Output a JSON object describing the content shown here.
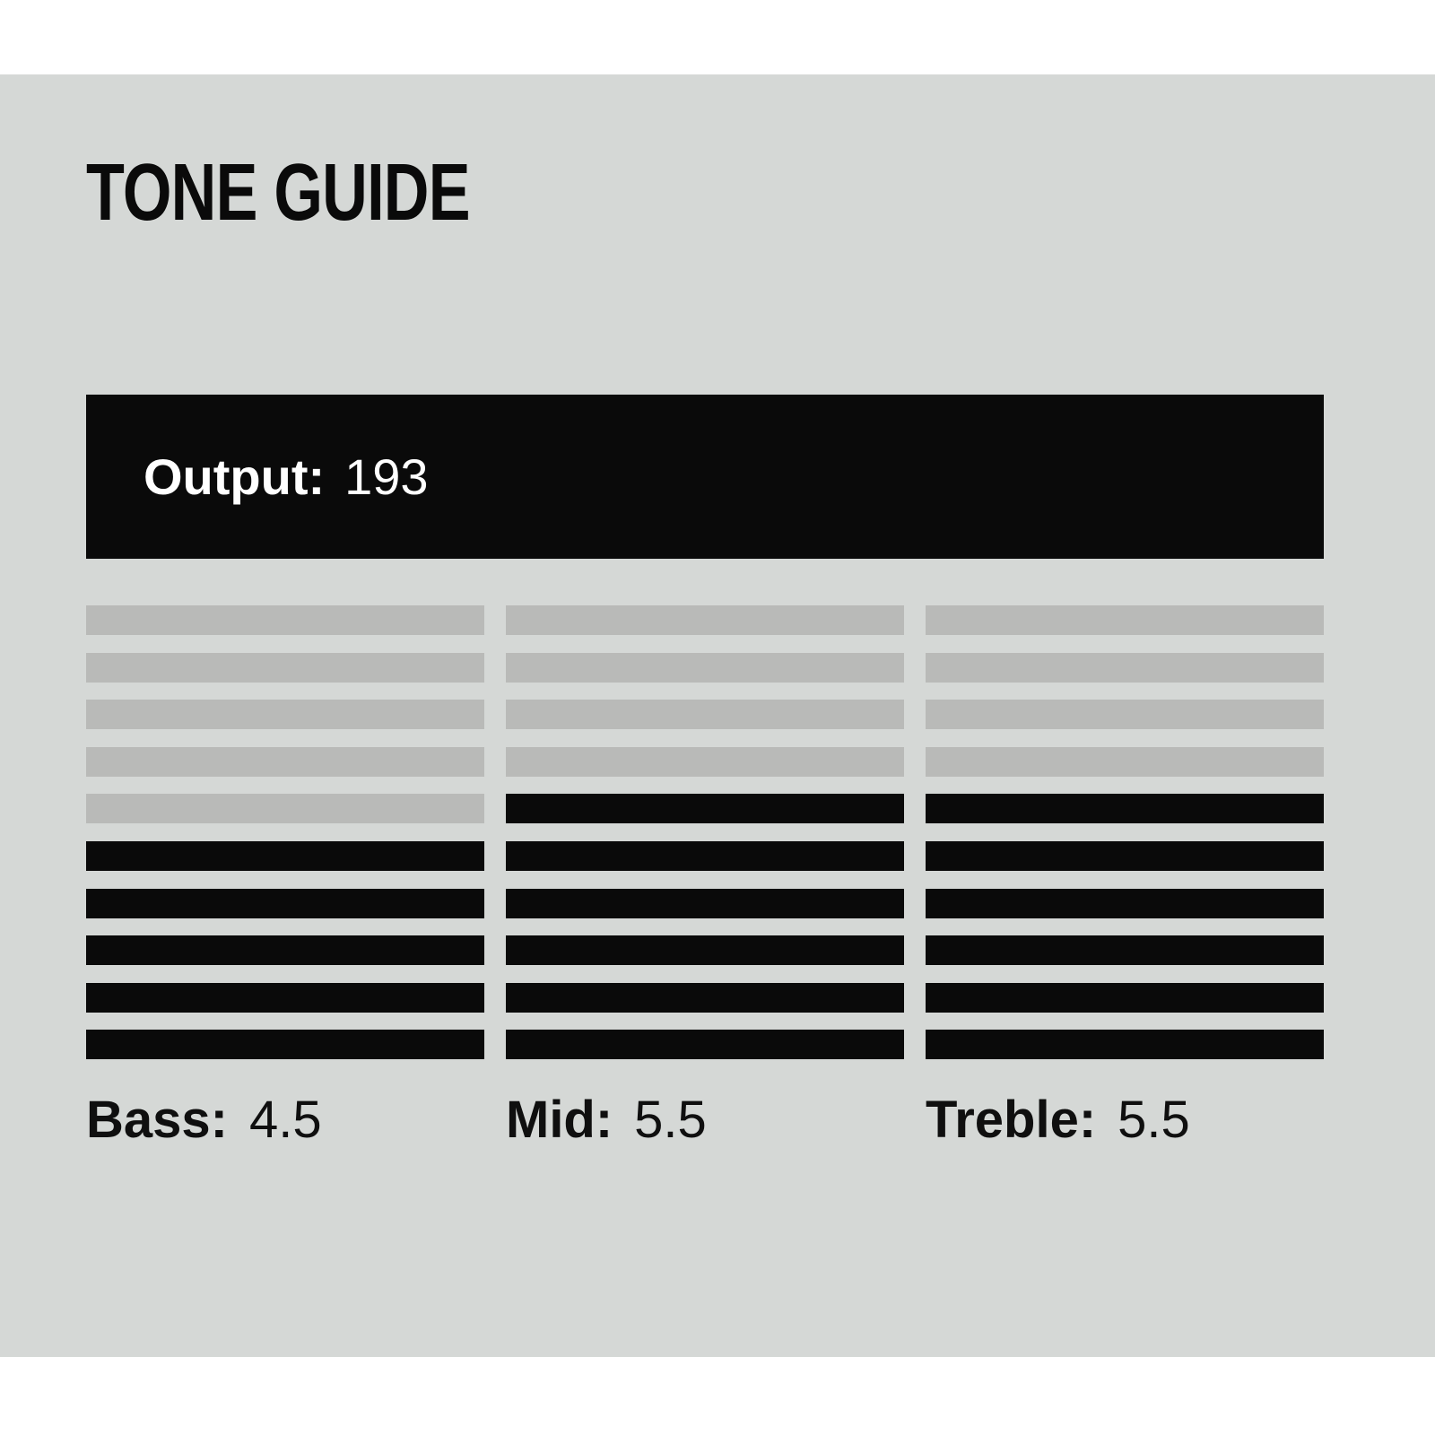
{
  "page": {
    "title": "TONE GUIDE"
  },
  "output": {
    "label": "Output:",
    "value": "193"
  },
  "meters": [
    {
      "id": "bass",
      "label": "Bass:",
      "value": "4.5",
      "segments_total": 10,
      "segments_active": 5
    },
    {
      "id": "mid",
      "label": "Mid:",
      "value": "5.5",
      "segments_total": 10,
      "segments_active": 6
    },
    {
      "id": "treble",
      "label": "Treble:",
      "value": "5.5",
      "segments_total": 10,
      "segments_active": 6
    }
  ],
  "colors": {
    "page_background": "#ffffff",
    "panel_background": "#d5d8d6",
    "segment_inactive": "#b9bab8",
    "segment_active": "#0a0a0a",
    "output_background": "#0a0a0a",
    "output_text": "#ffffff",
    "title_text": "#0a0a0a"
  }
}
